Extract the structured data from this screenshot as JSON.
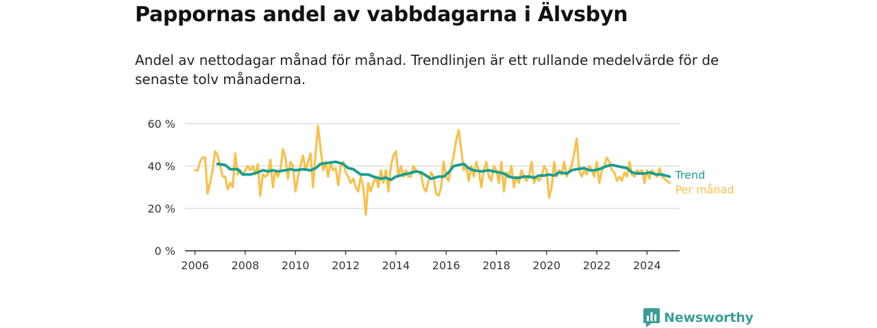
{
  "header": {
    "title": "Pappornas andel av vabbdagarna i Älvsbyn",
    "subtitle": "Andel av nettodagar månad för månad. Trendlinjen är ett rullande medelvärde för de senaste tolv månaderna."
  },
  "brand": {
    "name": "Newsworthy",
    "color": "#3a9e96",
    "icon": "bar-chart-logo-icon"
  },
  "chart_data": {
    "type": "line",
    "title": "Pappornas andel av vabbdagarna i Älvsbyn",
    "xlabel": "",
    "ylabel": "",
    "xlim": [
      2005.6,
      2025.3
    ],
    "ylim": [
      0,
      60
    ],
    "x_ticks": [
      {
        "value": 2006,
        "label": "2006"
      },
      {
        "value": 2008,
        "label": "2008"
      },
      {
        "value": 2010,
        "label": "2010"
      },
      {
        "value": 2012,
        "label": "2012"
      },
      {
        "value": 2014,
        "label": "2014"
      },
      {
        "value": 2016,
        "label": "2016"
      },
      {
        "value": 2018,
        "label": "2018"
      },
      {
        "value": 2020,
        "label": "2020"
      },
      {
        "value": 2022,
        "label": "2022"
      },
      {
        "value": 2024,
        "label": "2024"
      }
    ],
    "y_ticks": [
      {
        "value": 0,
        "label": "0 %"
      },
      {
        "value": 20,
        "label": "20 %"
      },
      {
        "value": 40,
        "label": "40 %"
      },
      {
        "value": 60,
        "label": "60 %"
      }
    ],
    "grid": true,
    "legend": "end-of-line labels",
    "series": [
      {
        "name": "Per månad",
        "color": "#f8c04a",
        "points": [
          [
            2006.0,
            38
          ],
          [
            2006.1,
            38
          ],
          [
            2006.2,
            42
          ],
          [
            2006.3,
            44
          ],
          [
            2006.4,
            44
          ],
          [
            2006.5,
            27
          ],
          [
            2006.6,
            32
          ],
          [
            2006.7,
            38
          ],
          [
            2006.8,
            47
          ],
          [
            2006.9,
            45
          ],
          [
            2007.0,
            40
          ],
          [
            2007.1,
            35
          ],
          [
            2007.2,
            35
          ],
          [
            2007.3,
            29
          ],
          [
            2007.4,
            32
          ],
          [
            2007.5,
            30
          ],
          [
            2007.6,
            46
          ],
          [
            2007.7,
            36
          ],
          [
            2007.8,
            38
          ],
          [
            2007.9,
            36
          ],
          [
            2008.0,
            38
          ],
          [
            2008.1,
            40
          ],
          [
            2008.2,
            38
          ],
          [
            2008.3,
            40
          ],
          [
            2008.4,
            36
          ],
          [
            2008.5,
            41
          ],
          [
            2008.6,
            26
          ],
          [
            2008.7,
            36
          ],
          [
            2008.8,
            35
          ],
          [
            2008.9,
            36
          ],
          [
            2009.0,
            43
          ],
          [
            2009.1,
            30
          ],
          [
            2009.2,
            38
          ],
          [
            2009.3,
            35
          ],
          [
            2009.4,
            38
          ],
          [
            2009.5,
            48
          ],
          [
            2009.6,
            44
          ],
          [
            2009.7,
            34
          ],
          [
            2009.8,
            42
          ],
          [
            2009.9,
            40
          ],
          [
            2010.0,
            28
          ],
          [
            2010.1,
            35
          ],
          [
            2010.2,
            40
          ],
          [
            2010.3,
            45
          ],
          [
            2010.4,
            38
          ],
          [
            2010.5,
            42
          ],
          [
            2010.6,
            46
          ],
          [
            2010.7,
            30
          ],
          [
            2010.8,
            46
          ],
          [
            2010.9,
            59
          ],
          [
            2011.0,
            48
          ],
          [
            2011.1,
            38
          ],
          [
            2011.2,
            42
          ],
          [
            2011.3,
            35
          ],
          [
            2011.4,
            42
          ],
          [
            2011.5,
            38
          ],
          [
            2011.6,
            39
          ],
          [
            2011.7,
            31
          ],
          [
            2011.8,
            40
          ],
          [
            2011.9,
            42
          ],
          [
            2012.0,
            37
          ],
          [
            2012.1,
            35
          ],
          [
            2012.2,
            32
          ],
          [
            2012.3,
            34
          ],
          [
            2012.4,
            30
          ],
          [
            2012.5,
            28
          ],
          [
            2012.6,
            35
          ],
          [
            2012.7,
            30
          ],
          [
            2012.8,
            17
          ],
          [
            2012.9,
            32
          ],
          [
            2013.0,
            28
          ],
          [
            2013.1,
            32
          ],
          [
            2013.2,
            35
          ],
          [
            2013.3,
            30
          ],
          [
            2013.4,
            38
          ],
          [
            2013.5,
            32
          ],
          [
            2013.6,
            38
          ],
          [
            2013.7,
            28
          ],
          [
            2013.8,
            40
          ],
          [
            2013.9,
            45
          ],
          [
            2014.0,
            47
          ],
          [
            2014.1,
            35
          ],
          [
            2014.2,
            40
          ],
          [
            2014.3,
            35
          ],
          [
            2014.4,
            38
          ],
          [
            2014.5,
            35
          ],
          [
            2014.6,
            35
          ],
          [
            2014.7,
            40
          ],
          [
            2014.8,
            38
          ],
          [
            2014.9,
            37
          ],
          [
            2015.0,
            36
          ],
          [
            2015.1,
            30
          ],
          [
            2015.2,
            28
          ],
          [
            2015.3,
            33
          ],
          [
            2015.4,
            37
          ],
          [
            2015.5,
            35
          ],
          [
            2015.6,
            27
          ],
          [
            2015.7,
            26
          ],
          [
            2015.8,
            30
          ],
          [
            2015.9,
            42
          ],
          [
            2016.0,
            35
          ],
          [
            2016.1,
            33
          ],
          [
            2016.2,
            40
          ],
          [
            2016.3,
            45
          ],
          [
            2016.4,
            52
          ],
          [
            2016.5,
            57
          ],
          [
            2016.6,
            48
          ],
          [
            2016.7,
            38
          ],
          [
            2016.8,
            40
          ],
          [
            2016.9,
            33
          ],
          [
            2017.0,
            40
          ],
          [
            2017.1,
            35
          ],
          [
            2017.2,
            42
          ],
          [
            2017.3,
            38
          ],
          [
            2017.4,
            30
          ],
          [
            2017.5,
            38
          ],
          [
            2017.6,
            42
          ],
          [
            2017.7,
            35
          ],
          [
            2017.8,
            33
          ],
          [
            2017.9,
            40
          ],
          [
            2018.0,
            38
          ],
          [
            2018.1,
            32
          ],
          [
            2018.2,
            42
          ],
          [
            2018.3,
            28
          ],
          [
            2018.4,
            37
          ],
          [
            2018.5,
            35
          ],
          [
            2018.6,
            40
          ],
          [
            2018.7,
            30
          ],
          [
            2018.8,
            35
          ],
          [
            2018.9,
            32
          ],
          [
            2019.0,
            38
          ],
          [
            2019.1,
            35
          ],
          [
            2019.2,
            33
          ],
          [
            2019.3,
            35
          ],
          [
            2019.4,
            42
          ],
          [
            2019.5,
            32
          ],
          [
            2019.6,
            35
          ],
          [
            2019.7,
            33
          ],
          [
            2019.8,
            35
          ],
          [
            2019.9,
            40
          ],
          [
            2020.0,
            38
          ],
          [
            2020.1,
            25
          ],
          [
            2020.2,
            30
          ],
          [
            2020.3,
            42
          ],
          [
            2020.4,
            35
          ],
          [
            2020.5,
            38
          ],
          [
            2020.6,
            36
          ],
          [
            2020.7,
            42
          ],
          [
            2020.8,
            35
          ],
          [
            2020.9,
            38
          ],
          [
            2021.0,
            40
          ],
          [
            2021.1,
            46
          ],
          [
            2021.2,
            53
          ],
          [
            2021.3,
            38
          ],
          [
            2021.4,
            35
          ],
          [
            2021.5,
            38
          ],
          [
            2021.6,
            36
          ],
          [
            2021.7,
            40
          ],
          [
            2021.8,
            38
          ],
          [
            2021.9,
            35
          ],
          [
            2022.0,
            42
          ],
          [
            2022.1,
            32
          ],
          [
            2022.2,
            38
          ],
          [
            2022.3,
            40
          ],
          [
            2022.4,
            44
          ],
          [
            2022.5,
            42
          ],
          [
            2022.6,
            38
          ],
          [
            2022.7,
            37
          ],
          [
            2022.8,
            33
          ],
          [
            2022.9,
            35
          ],
          [
            2023.0,
            33
          ],
          [
            2023.1,
            37
          ],
          [
            2023.2,
            35
          ],
          [
            2023.3,
            42
          ],
          [
            2023.4,
            36
          ],
          [
            2023.5,
            35
          ],
          [
            2023.6,
            38
          ],
          [
            2023.7,
            37
          ],
          [
            2023.8,
            38
          ],
          [
            2023.9,
            32
          ],
          [
            2024.0,
            38
          ],
          [
            2024.1,
            34
          ],
          [
            2024.2,
            38
          ],
          [
            2024.3,
            36
          ],
          [
            2024.4,
            35
          ],
          [
            2024.5,
            39
          ],
          [
            2024.6,
            35
          ],
          [
            2024.7,
            34
          ],
          [
            2024.8,
            33
          ],
          [
            2024.9,
            32
          ]
        ]
      },
      {
        "name": "Trend",
        "color": "#1a9e91",
        "points": [
          [
            2006.9,
            41
          ],
          [
            2007.2,
            40.5
          ],
          [
            2007.4,
            38.5
          ],
          [
            2007.7,
            38.5
          ],
          [
            2007.9,
            36
          ],
          [
            2008.2,
            36
          ],
          [
            2008.5,
            37
          ],
          [
            2008.7,
            38
          ],
          [
            2008.9,
            37.5
          ],
          [
            2009.1,
            38
          ],
          [
            2009.3,
            37.5
          ],
          [
            2009.6,
            38
          ],
          [
            2009.8,
            38.5
          ],
          [
            2010.0,
            38
          ],
          [
            2010.3,
            38.5
          ],
          [
            2010.6,
            38
          ],
          [
            2010.8,
            39
          ],
          [
            2011.0,
            41
          ],
          [
            2011.3,
            41.5
          ],
          [
            2011.6,
            42
          ],
          [
            2011.9,
            41
          ],
          [
            2012.1,
            39
          ],
          [
            2012.3,
            38.5
          ],
          [
            2012.6,
            36
          ],
          [
            2012.9,
            36
          ],
          [
            2013.1,
            35
          ],
          [
            2013.4,
            34
          ],
          [
            2013.6,
            34.5
          ],
          [
            2013.8,
            33.5
          ],
          [
            2014.0,
            35
          ],
          [
            2014.3,
            36
          ],
          [
            2014.5,
            36.5
          ],
          [
            2014.8,
            37.5
          ],
          [
            2015.0,
            37
          ],
          [
            2015.2,
            35.5
          ],
          [
            2015.4,
            34
          ],
          [
            2015.7,
            35
          ],
          [
            2015.9,
            35
          ],
          [
            2016.1,
            37
          ],
          [
            2016.3,
            40
          ],
          [
            2016.5,
            40.5
          ],
          [
            2016.7,
            41
          ],
          [
            2016.9,
            39
          ],
          [
            2017.1,
            38
          ],
          [
            2017.4,
            37.5
          ],
          [
            2017.7,
            38
          ],
          [
            2017.9,
            37.5
          ],
          [
            2018.1,
            37
          ],
          [
            2018.3,
            36.5
          ],
          [
            2018.5,
            35
          ],
          [
            2018.7,
            34.5
          ],
          [
            2018.9,
            34.5
          ],
          [
            2019.1,
            35
          ],
          [
            2019.3,
            35
          ],
          [
            2019.5,
            34.5
          ],
          [
            2019.7,
            35.5
          ],
          [
            2019.9,
            35.5
          ],
          [
            2020.1,
            36
          ],
          [
            2020.3,
            35.5
          ],
          [
            2020.5,
            37
          ],
          [
            2020.8,
            36.5
          ],
          [
            2021.0,
            38
          ],
          [
            2021.2,
            38.5
          ],
          [
            2021.5,
            39
          ],
          [
            2021.7,
            38
          ],
          [
            2021.9,
            38
          ],
          [
            2022.1,
            38.5
          ],
          [
            2022.4,
            40
          ],
          [
            2022.6,
            40.5
          ],
          [
            2022.8,
            40
          ],
          [
            2023.0,
            39.5
          ],
          [
            2023.2,
            39
          ],
          [
            2023.4,
            37
          ],
          [
            2023.6,
            36.5
          ],
          [
            2023.9,
            36.5
          ],
          [
            2024.1,
            37
          ],
          [
            2024.4,
            36
          ],
          [
            2024.6,
            36
          ],
          [
            2024.9,
            35
          ]
        ]
      }
    ]
  }
}
